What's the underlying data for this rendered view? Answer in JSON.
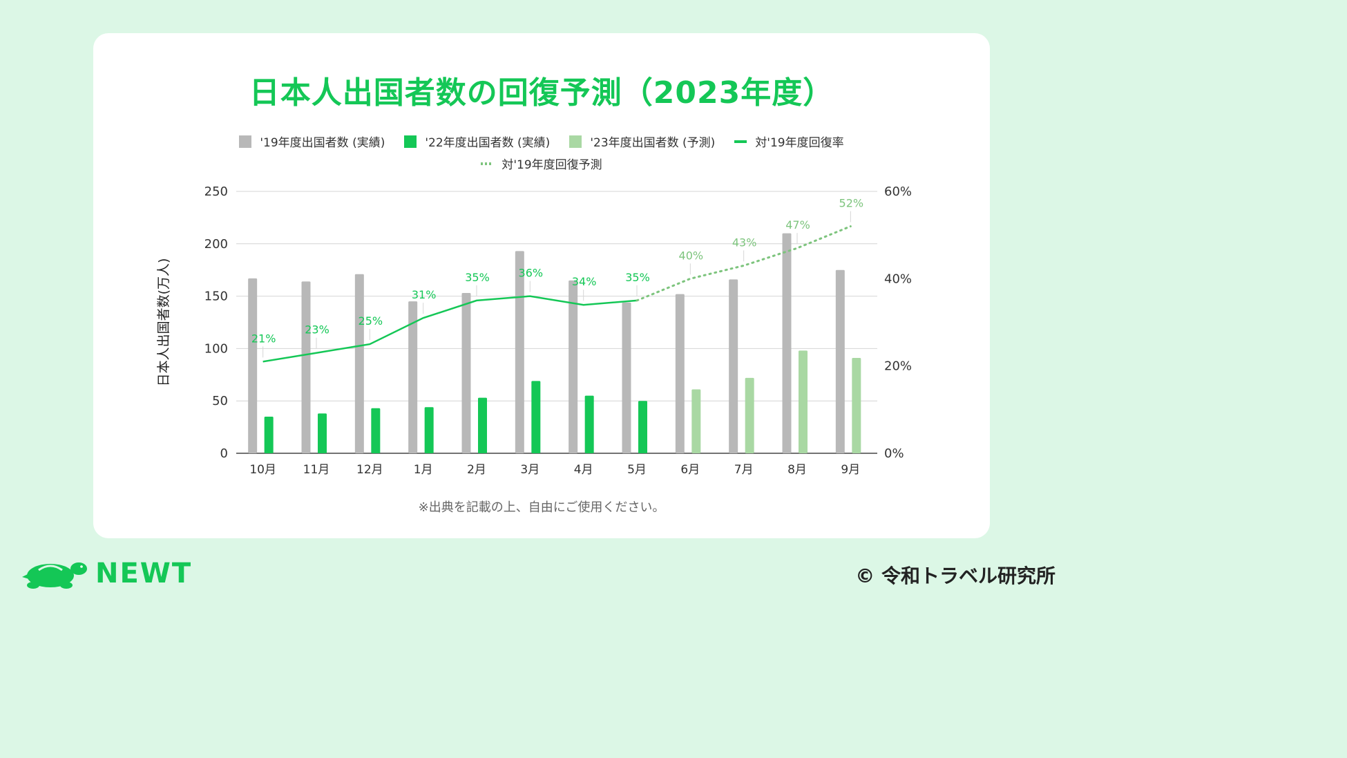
{
  "page": {
    "title": "日本人出国者数の回復予測（2023年度）",
    "note": "※出典を記載の上、自由にご使用ください。",
    "brand": "NEWT",
    "copyright": "© 令和トラベル研究所"
  },
  "legend": {
    "items": [
      {
        "label": "'19年度出国者数 (実績)",
        "color": "#b8b8b8",
        "kind": "box"
      },
      {
        "label": "'22年度出国者数 (実績)",
        "color": "#14c756",
        "kind": "box"
      },
      {
        "label": "'23年度出国者数 (予測)",
        "color": "#a9d8a3",
        "kind": "box"
      },
      {
        "label": "対'19年度回復率",
        "color": "#14c756",
        "kind": "line"
      },
      {
        "label": "対'19年度回復予測",
        "color": "#7dc47d",
        "kind": "dots"
      }
    ]
  },
  "chart_data": {
    "type": "bar",
    "categories": [
      "10月",
      "11月",
      "12月",
      "1月",
      "2月",
      "3月",
      "4月",
      "5月",
      "6月",
      "7月",
      "8月",
      "9月"
    ],
    "ylabel": "日本人出国者数(万人)",
    "ylim": [
      0,
      250
    ],
    "yticks": [
      "0",
      "50",
      "100",
      "150",
      "200",
      "250"
    ],
    "y2lim": [
      0,
      60
    ],
    "y2ticks": [
      "0%",
      "20%",
      "40%",
      "60%"
    ],
    "grid": true,
    "legend_position": "top",
    "series": [
      {
        "name": "'19年度出国者数 (実績)",
        "type": "bar",
        "color": "#b8b8b8",
        "values": [
          167,
          164,
          171,
          145,
          153,
          193,
          165,
          144,
          152,
          166,
          210,
          175
        ]
      },
      {
        "name": "'22年度出国者数 (実績)",
        "type": "bar",
        "color": "#14c756",
        "values": [
          35,
          38,
          43,
          44,
          53,
          69,
          55,
          50,
          null,
          null,
          null,
          null
        ]
      },
      {
        "name": "'23年度出国者数 (予測)",
        "type": "bar",
        "color": "#a9d8a3",
        "values": [
          null,
          null,
          null,
          null,
          null,
          null,
          null,
          null,
          61,
          72,
          98,
          91
        ]
      },
      {
        "name": "対'19年度回復率",
        "type": "line",
        "axis": "right",
        "color": "#14c756",
        "values": [
          21,
          23,
          25,
          31,
          35,
          36,
          34,
          35,
          null,
          null,
          null,
          null
        ],
        "labels": [
          "21%",
          "23%",
          "25%",
          "31%",
          "35%",
          "36%",
          "34%",
          "35%",
          null,
          null,
          null,
          null
        ]
      },
      {
        "name": "対'19年度回復予測",
        "type": "line",
        "axis": "right",
        "style": "dotted",
        "color": "#7dc47d",
        "values": [
          null,
          null,
          null,
          null,
          null,
          null,
          null,
          35,
          40,
          43,
          47,
          52
        ],
        "labels": [
          null,
          null,
          null,
          null,
          null,
          null,
          null,
          null,
          "40%",
          "43%",
          "47%",
          "52%"
        ]
      }
    ]
  }
}
